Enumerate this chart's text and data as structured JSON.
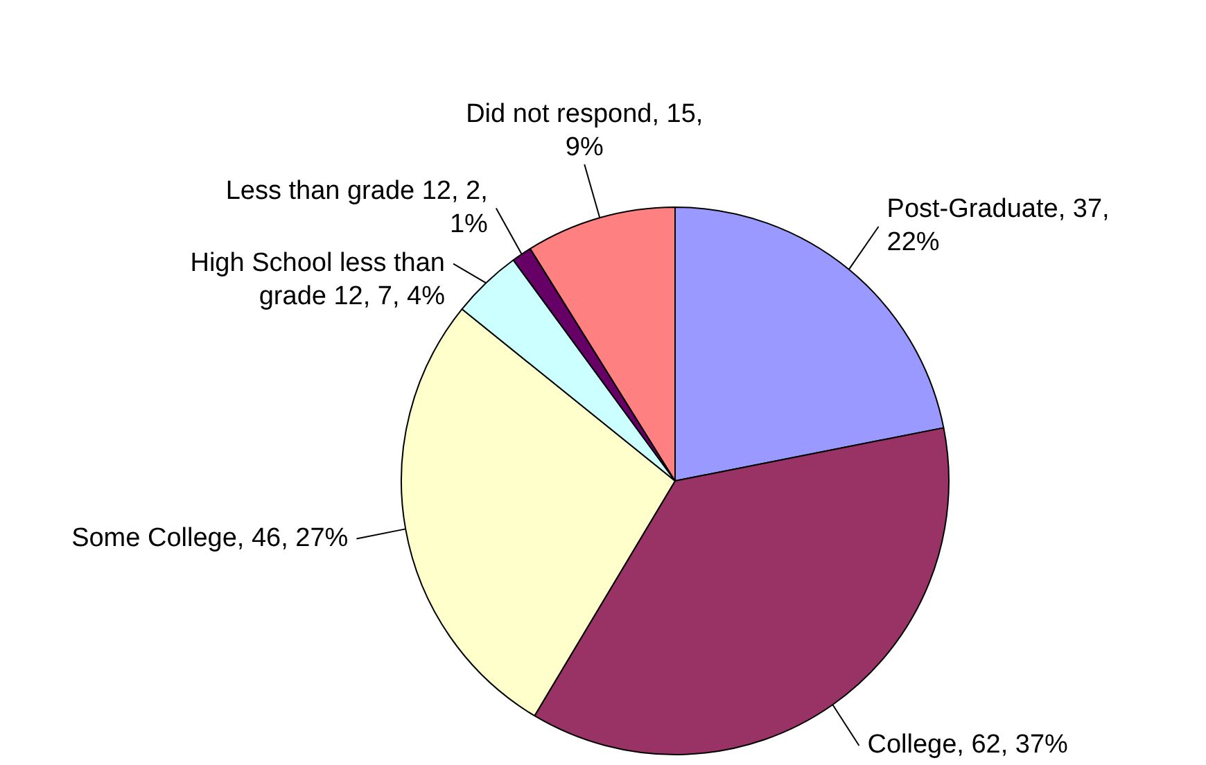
{
  "chart_data": {
    "type": "pie",
    "categories": [
      "Post-Graduate",
      "College",
      "Some College",
      "High School less than grade 12",
      "Less than grade 12",
      "Did not respond"
    ],
    "values": [
      37,
      62,
      46,
      7,
      2,
      15
    ],
    "colors": [
      "#9999ff",
      "#993366",
      "#ffffcc",
      "#ccffff",
      "#660066",
      "#ff8080"
    ],
    "value_labels": [
      "37, 22%",
      "62, 37%",
      "46, 27%",
      "7, 4%",
      "2, 1%",
      "15, 9%"
    ]
  }
}
